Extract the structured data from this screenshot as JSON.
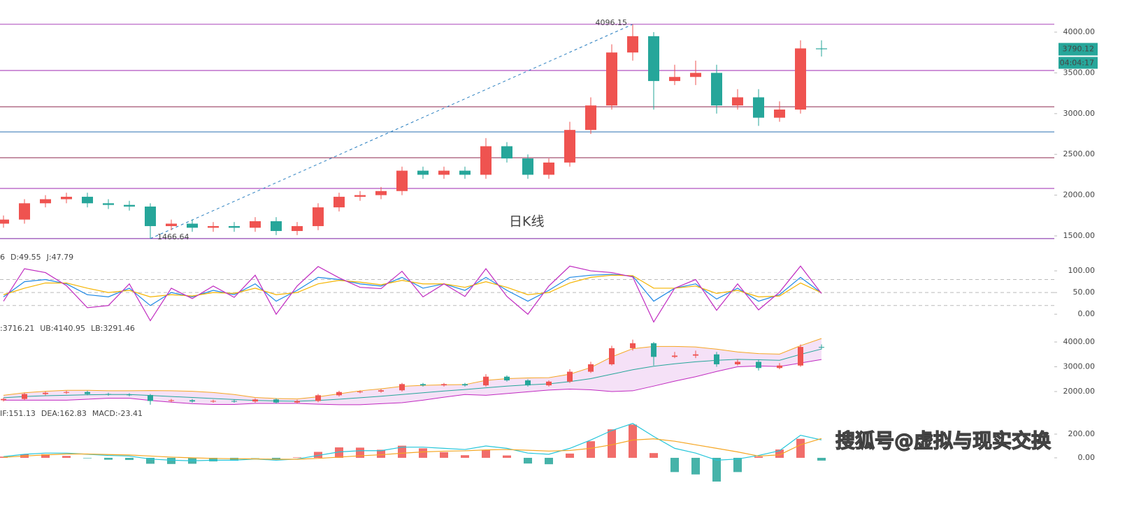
{
  "chart_data": [
    {
      "type": "candlestick",
      "annotation": "日K线",
      "countdown": "04:04:17",
      "up_color": "#ef5350",
      "down_color": "#26a69a",
      "open": [
        1650,
        1700,
        1900,
        1950,
        1980,
        1900,
        1880,
        1860,
        1620,
        1650,
        1600,
        1620,
        1600,
        1680,
        1560,
        1620,
        1850,
        1980,
        2000,
        2050,
        2300,
        2250,
        2300,
        2250,
        2600,
        2450,
        2250,
        2400,
        2800,
        3100,
        3750,
        3950,
        3400,
        3450,
        3500,
        3100,
        3200,
        2950,
        3050,
        3800
      ],
      "high": [
        1750,
        1950,
        2000,
        2030,
        2030,
        1950,
        1930,
        1900,
        1700,
        1700,
        1670,
        1670,
        1730,
        1730,
        1670,
        1900,
        2030,
        2050,
        2100,
        2350,
        2350,
        2350,
        2350,
        2700,
        2650,
        2500,
        2450,
        2900,
        3200,
        3850,
        4096.15,
        4000,
        3600,
        3650,
        3600,
        3300,
        3300,
        3150,
        3900,
        3900
      ],
      "low": [
        1600,
        1650,
        1850,
        1900,
        1850,
        1830,
        1810,
        1466.64,
        1570,
        1550,
        1550,
        1550,
        1550,
        1510,
        1510,
        1570,
        1800,
        1930,
        1950,
        2000,
        2200,
        2200,
        2200,
        2200,
        2400,
        2200,
        2200,
        2350,
        2750,
        3050,
        3650,
        3050,
        3350,
        3350,
        3000,
        3050,
        2850,
        2900,
        3000,
        3700
      ],
      "close": [
        1700,
        1900,
        1950,
        1980,
        1900,
        1880,
        1860,
        1620,
        1650,
        1600,
        1620,
        1600,
        1680,
        1560,
        1620,
        1850,
        1980,
        2000,
        2050,
        2300,
        2250,
        2300,
        2250,
        2600,
        2450,
        2250,
        2400,
        2800,
        3100,
        3750,
        3950,
        3400,
        3450,
        3500,
        3100,
        3200,
        2950,
        3050,
        3800,
        3790.12
      ],
      "levels": [
        4096.15,
        3529,
        3084,
        2776,
        2459,
        2082,
        1466.64
      ],
      "level_colors": [
        "#ab47bc",
        "#9c27b0",
        "#8e244d",
        "#2a6fb0",
        "#8e244d",
        "#9c27b0",
        "#7b1fa2"
      ],
      "ylim": [
        1380,
        4394
      ],
      "yticks": [
        {
          "value": 1500,
          "label": "1500.00"
        },
        {
          "value": 2000,
          "label": "2000.00"
        },
        {
          "value": 2500,
          "label": "2500.00"
        },
        {
          "value": 3000,
          "label": "3000.00"
        },
        {
          "value": 3500,
          "label": "3500.00"
        },
        {
          "value": 4000,
          "label": "4000.00"
        }
      ]
    },
    {
      "type": "line",
      "legend": [
        "6",
        "D:49.55",
        "J:47.79"
      ],
      "series": [
        {
          "color": "#1e88e5",
          "values": [
            40,
            75,
            80,
            70,
            45,
            40,
            60,
            20,
            50,
            40,
            55,
            45,
            70,
            30,
            55,
            85,
            80,
            70,
            65,
            85,
            60,
            70,
            55,
            85,
            55,
            30,
            55,
            85,
            90,
            92,
            88,
            30,
            60,
            70,
            35,
            60,
            30,
            45,
            85,
            48.96
          ]
        },
        {
          "color": "#f5b400",
          "values": [
            45,
            60,
            72,
            72,
            60,
            50,
            55,
            40,
            45,
            42,
            50,
            48,
            60,
            45,
            50,
            70,
            78,
            74,
            68,
            78,
            70,
            70,
            62,
            75,
            62,
            45,
            50,
            72,
            85,
            90,
            89,
            60,
            60,
            65,
            48,
            55,
            40,
            42,
            72,
            49.55
          ]
        },
        {
          "color": "#c02ac0",
          "values": [
            30,
            105,
            96,
            66,
            15,
            20,
            70,
            -15,
            60,
            36,
            65,
            39,
            90,
            0,
            65,
            110,
            84,
            62,
            59,
            99,
            40,
            70,
            41,
            105,
            41,
            0,
            65,
            111,
            100,
            96,
            86,
            -18,
            60,
            80,
            9,
            70,
            10,
            51,
            111,
            47.79
          ]
        }
      ],
      "guides": [
        80,
        50,
        20
      ],
      "ylim": [
        -19,
        142
      ],
      "yticks": [
        {
          "value": 0,
          "label": "0.00"
        },
        {
          "value": 50,
          "label": "50.00"
        },
        {
          "value": 100,
          "label": "100.00"
        }
      ]
    },
    {
      "type": "boll",
      "legend": [
        ":3716.21",
        "UB:4140.95",
        "LB:3291.46"
      ],
      "band_color": "#f3d9f5",
      "series": [
        {
          "color": "#26a69a",
          "values": [
            1750,
            1800,
            1830,
            1850,
            1870,
            1880,
            1880,
            1840,
            1800,
            1760,
            1720,
            1680,
            1640,
            1620,
            1610,
            1640,
            1690,
            1750,
            1810,
            1880,
            1950,
            2020,
            2080,
            2150,
            2220,
            2270,
            2310,
            2400,
            2520,
            2700,
            2880,
            3020,
            3120,
            3200,
            3260,
            3300,
            3280,
            3260,
            3500,
            3716.21
          ]
        },
        {
          "color": "#f5a623",
          "values": [
            1850,
            1950,
            2010,
            2050,
            2050,
            2030,
            2030,
            2040,
            2030,
            2010,
            1960,
            1880,
            1760,
            1720,
            1700,
            1790,
            1910,
            2030,
            2110,
            2210,
            2250,
            2270,
            2280,
            2450,
            2520,
            2550,
            2560,
            2700,
            2970,
            3400,
            3730,
            3820,
            3820,
            3800,
            3710,
            3600,
            3530,
            3510,
            3850,
            4140.95
          ]
        },
        {
          "color": "#c02ac0",
          "values": [
            1650,
            1650,
            1650,
            1650,
            1690,
            1730,
            1730,
            1640,
            1570,
            1510,
            1480,
            1480,
            1520,
            1520,
            1520,
            1490,
            1470,
            1470,
            1510,
            1550,
            1650,
            1770,
            1880,
            1850,
            1920,
            1990,
            2060,
            2100,
            2070,
            2000,
            2030,
            2220,
            2420,
            2600,
            2810,
            3000,
            3030,
            3010,
            3150,
            3291.46
          ]
        }
      ],
      "ylim": [
        1324,
        4676
      ],
      "yticks": [
        {
          "value": 2000,
          "label": "2000.00"
        },
        {
          "value": 3000,
          "label": "3000.00"
        },
        {
          "value": 4000,
          "label": "4000.00"
        }
      ]
    },
    {
      "type": "macd",
      "legend": [
        "IF:151.13",
        "DEA:162.83",
        "MACD:-23.41"
      ],
      "series": [
        {
          "color": "#26c6da",
          "values": [
            10,
            30,
            40,
            40,
            30,
            20,
            15,
            -10,
            -20,
            -25,
            -20,
            -20,
            -10,
            -20,
            -10,
            20,
            50,
            60,
            60,
            90,
            90,
            80,
            70,
            100,
            80,
            40,
            30,
            80,
            150,
            230,
            290,
            180,
            80,
            40,
            -20,
            -10,
            20,
            60,
            190,
            151.13
          ]
        },
        {
          "color": "#f5a623",
          "values": [
            5,
            15,
            25,
            32,
            32,
            28,
            24,
            15,
            6,
            0,
            -5,
            -8,
            -9,
            -12,
            -12,
            -5,
            6,
            17,
            26,
            39,
            50,
            56,
            59,
            67,
            70,
            64,
            57,
            62,
            80,
            110,
            150,
            160,
            140,
            110,
            80,
            50,
            15,
            25,
            110,
            162.83
          ]
        }
      ],
      "histogram": [
        10,
        30,
        30,
        16,
        -4,
        -16,
        -18,
        -50,
        -52,
        -50,
        -30,
        -24,
        -2,
        -16,
        4,
        50,
        88,
        86,
        68,
        102,
        80,
        48,
        22,
        66,
        20,
        -48,
        -54,
        36,
        140,
        240,
        280,
        40,
        -120,
        -140,
        -200,
        -120,
        10,
        70,
        160,
        -23.41
      ],
      "ylim": [
        -212,
        400
      ],
      "yticks": [
        {
          "value": 0,
          "label": "0.00"
        },
        {
          "value": 200,
          "label": "200.00"
        }
      ]
    }
  ],
  "watermark": "搜狐号@虚拟与现实交换"
}
